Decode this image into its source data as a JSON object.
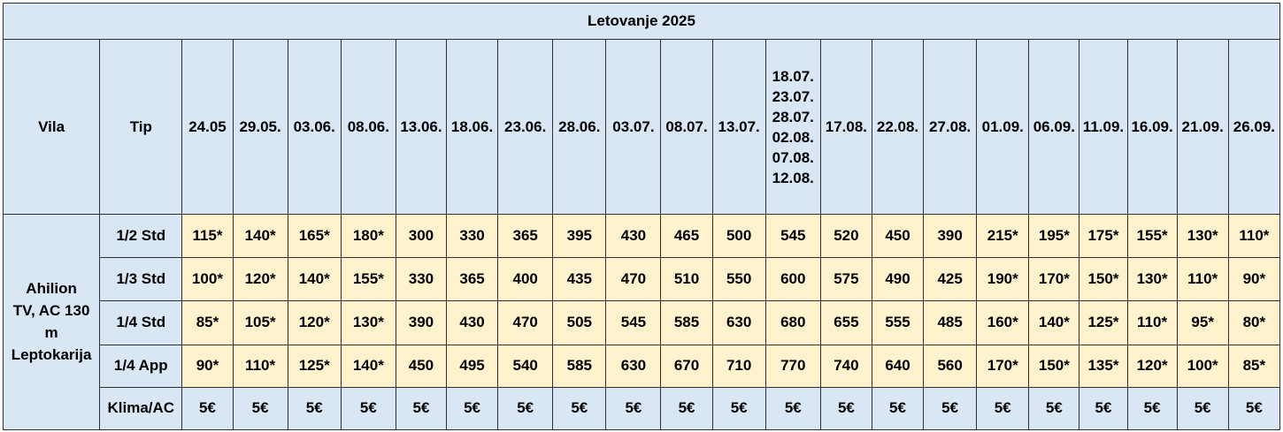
{
  "title": "Letovanje 2025",
  "headers": {
    "villa": "Vila",
    "type": "Tip"
  },
  "periods": [
    [
      "24.05"
    ],
    [
      "29.05."
    ],
    [
      "03.06."
    ],
    [
      "08.06."
    ],
    [
      "13.06."
    ],
    [
      "18.06."
    ],
    [
      "23.06."
    ],
    [
      "28.06."
    ],
    [
      "03.07."
    ],
    [
      "08.07."
    ],
    [
      "13.07."
    ],
    [
      "18.07.",
      "23.07.",
      "28.07.",
      "02.08.",
      "07.08.",
      "12.08."
    ],
    [
      "17.08."
    ],
    [
      "22.08."
    ],
    [
      "27.08."
    ],
    [
      "01.09."
    ],
    [
      "06.09."
    ],
    [
      "11.09."
    ],
    [
      "16.09."
    ],
    [
      "21.09."
    ],
    [
      "26.09."
    ]
  ],
  "villa": {
    "lines": [
      "Ahilion",
      "TV, AC 130",
      "m",
      "Leptokarija"
    ]
  },
  "rows": [
    {
      "type": "1/2 Std",
      "prices": [
        "115*",
        "140*",
        "165*",
        "180*",
        "300",
        "330",
        "365",
        "395",
        "430",
        "465",
        "500",
        "545",
        "520",
        "450",
        "390",
        "215*",
        "195*",
        "175*",
        "155*",
        "130*",
        "110*"
      ]
    },
    {
      "type": "1/3 Std",
      "prices": [
        "100*",
        "120*",
        "140*",
        "155*",
        "330",
        "365",
        "400",
        "435",
        "470",
        "510",
        "550",
        "600",
        "575",
        "490",
        "425",
        "190*",
        "170*",
        "150*",
        "130*",
        "110*",
        "90*"
      ]
    },
    {
      "type": "1/4 Std",
      "prices": [
        "85*",
        "105*",
        "120*",
        "130*",
        "390",
        "430",
        "470",
        "505",
        "545",
        "585",
        "630",
        "680",
        "655",
        "555",
        "485",
        "160*",
        "140*",
        "125*",
        "110*",
        "95*",
        "80*"
      ]
    },
    {
      "type": "1/4 App",
      "prices": [
        "90*",
        "110*",
        "125*",
        "140*",
        "450",
        "495",
        "540",
        "585",
        "630",
        "670",
        "710",
        "770",
        "740",
        "640",
        "560",
        "170*",
        "150*",
        "135*",
        "120*",
        "100*",
        "85*"
      ]
    }
  ],
  "ac": {
    "label": "Klima/AC",
    "prices": [
      "5€",
      "5€",
      "5€",
      "5€",
      "5€",
      "5€",
      "5€",
      "5€",
      "5€",
      "5€",
      "5€",
      "5€",
      "5€",
      "5€",
      "5€",
      "5€",
      "5€",
      "5€",
      "5€",
      "5€",
      "5€"
    ]
  },
  "colors": {
    "header_background": "#d9e6f4",
    "price_background": "#fff2cc",
    "border": "#2f2f2f"
  }
}
